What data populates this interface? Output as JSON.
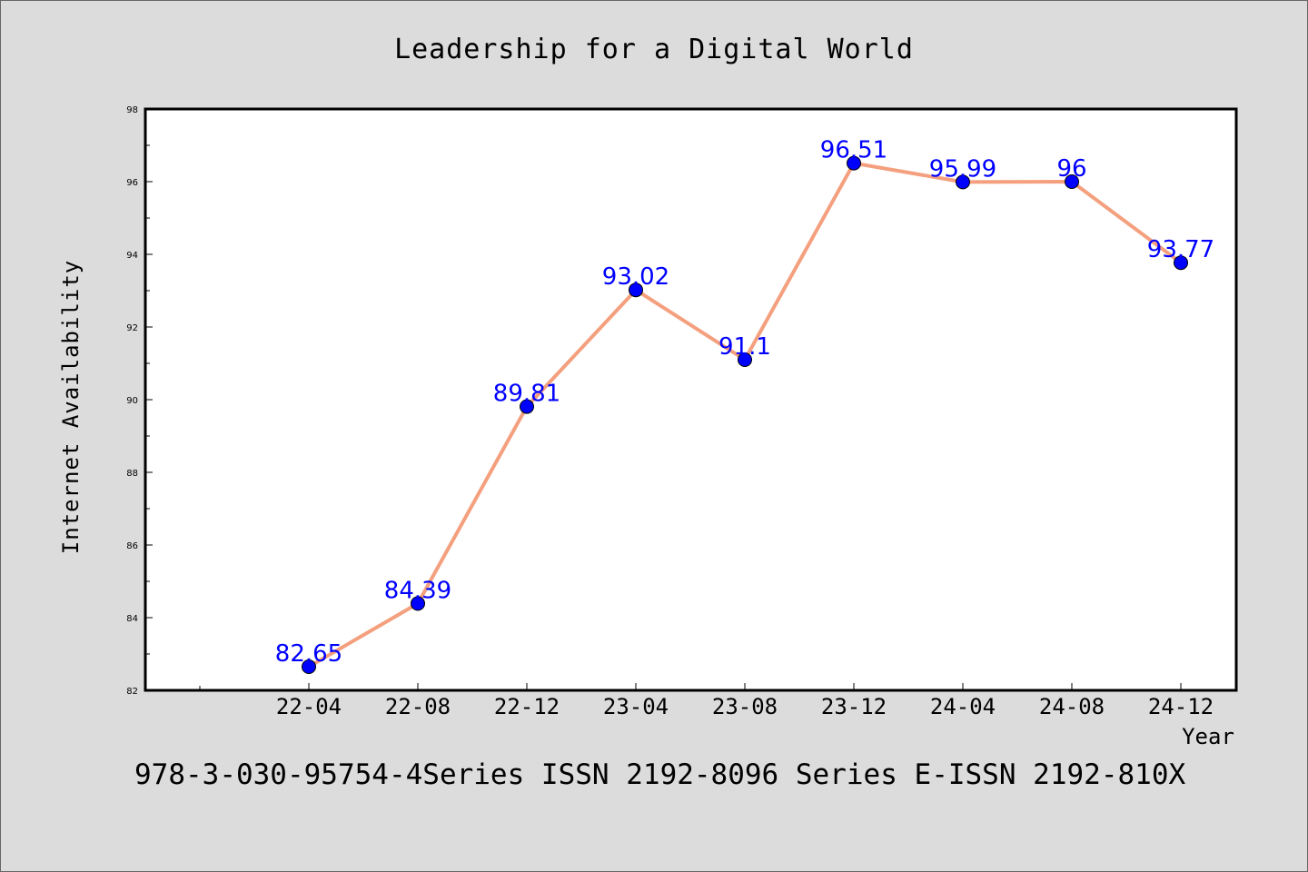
{
  "chart_data": {
    "type": "line",
    "title": "Leadership for a Digital World",
    "xlabel": "Year",
    "ylabel": "Internet Availability",
    "categories": [
      "22-04",
      "22-08",
      "22-12",
      "23-04",
      "23-08",
      "23-12",
      "24-04",
      "24-08",
      "24-12"
    ],
    "series": [
      {
        "values": [
          82.65,
          84.39,
          89.81,
          93.02,
          91.1,
          96.51,
          95.99,
          96,
          93.77
        ],
        "labels": [
          "82.65",
          "84.39",
          "89.81",
          "93.02",
          "91.1",
          "96.51",
          "95.99",
          "96",
          "93.77"
        ]
      }
    ],
    "yticks": [
      "82",
      "84",
      "86",
      "88",
      "90",
      "92",
      "94",
      "96",
      "98"
    ],
    "ylim": [
      82,
      98
    ],
    "grid": false,
    "line_color": "#f4a07e",
    "marker_color": "#0000ff",
    "label_color": "#0000ff",
    "footer": "978-3-030-95754-4Series ISSN 2192-8096 Series E-ISSN 2192-810X"
  }
}
